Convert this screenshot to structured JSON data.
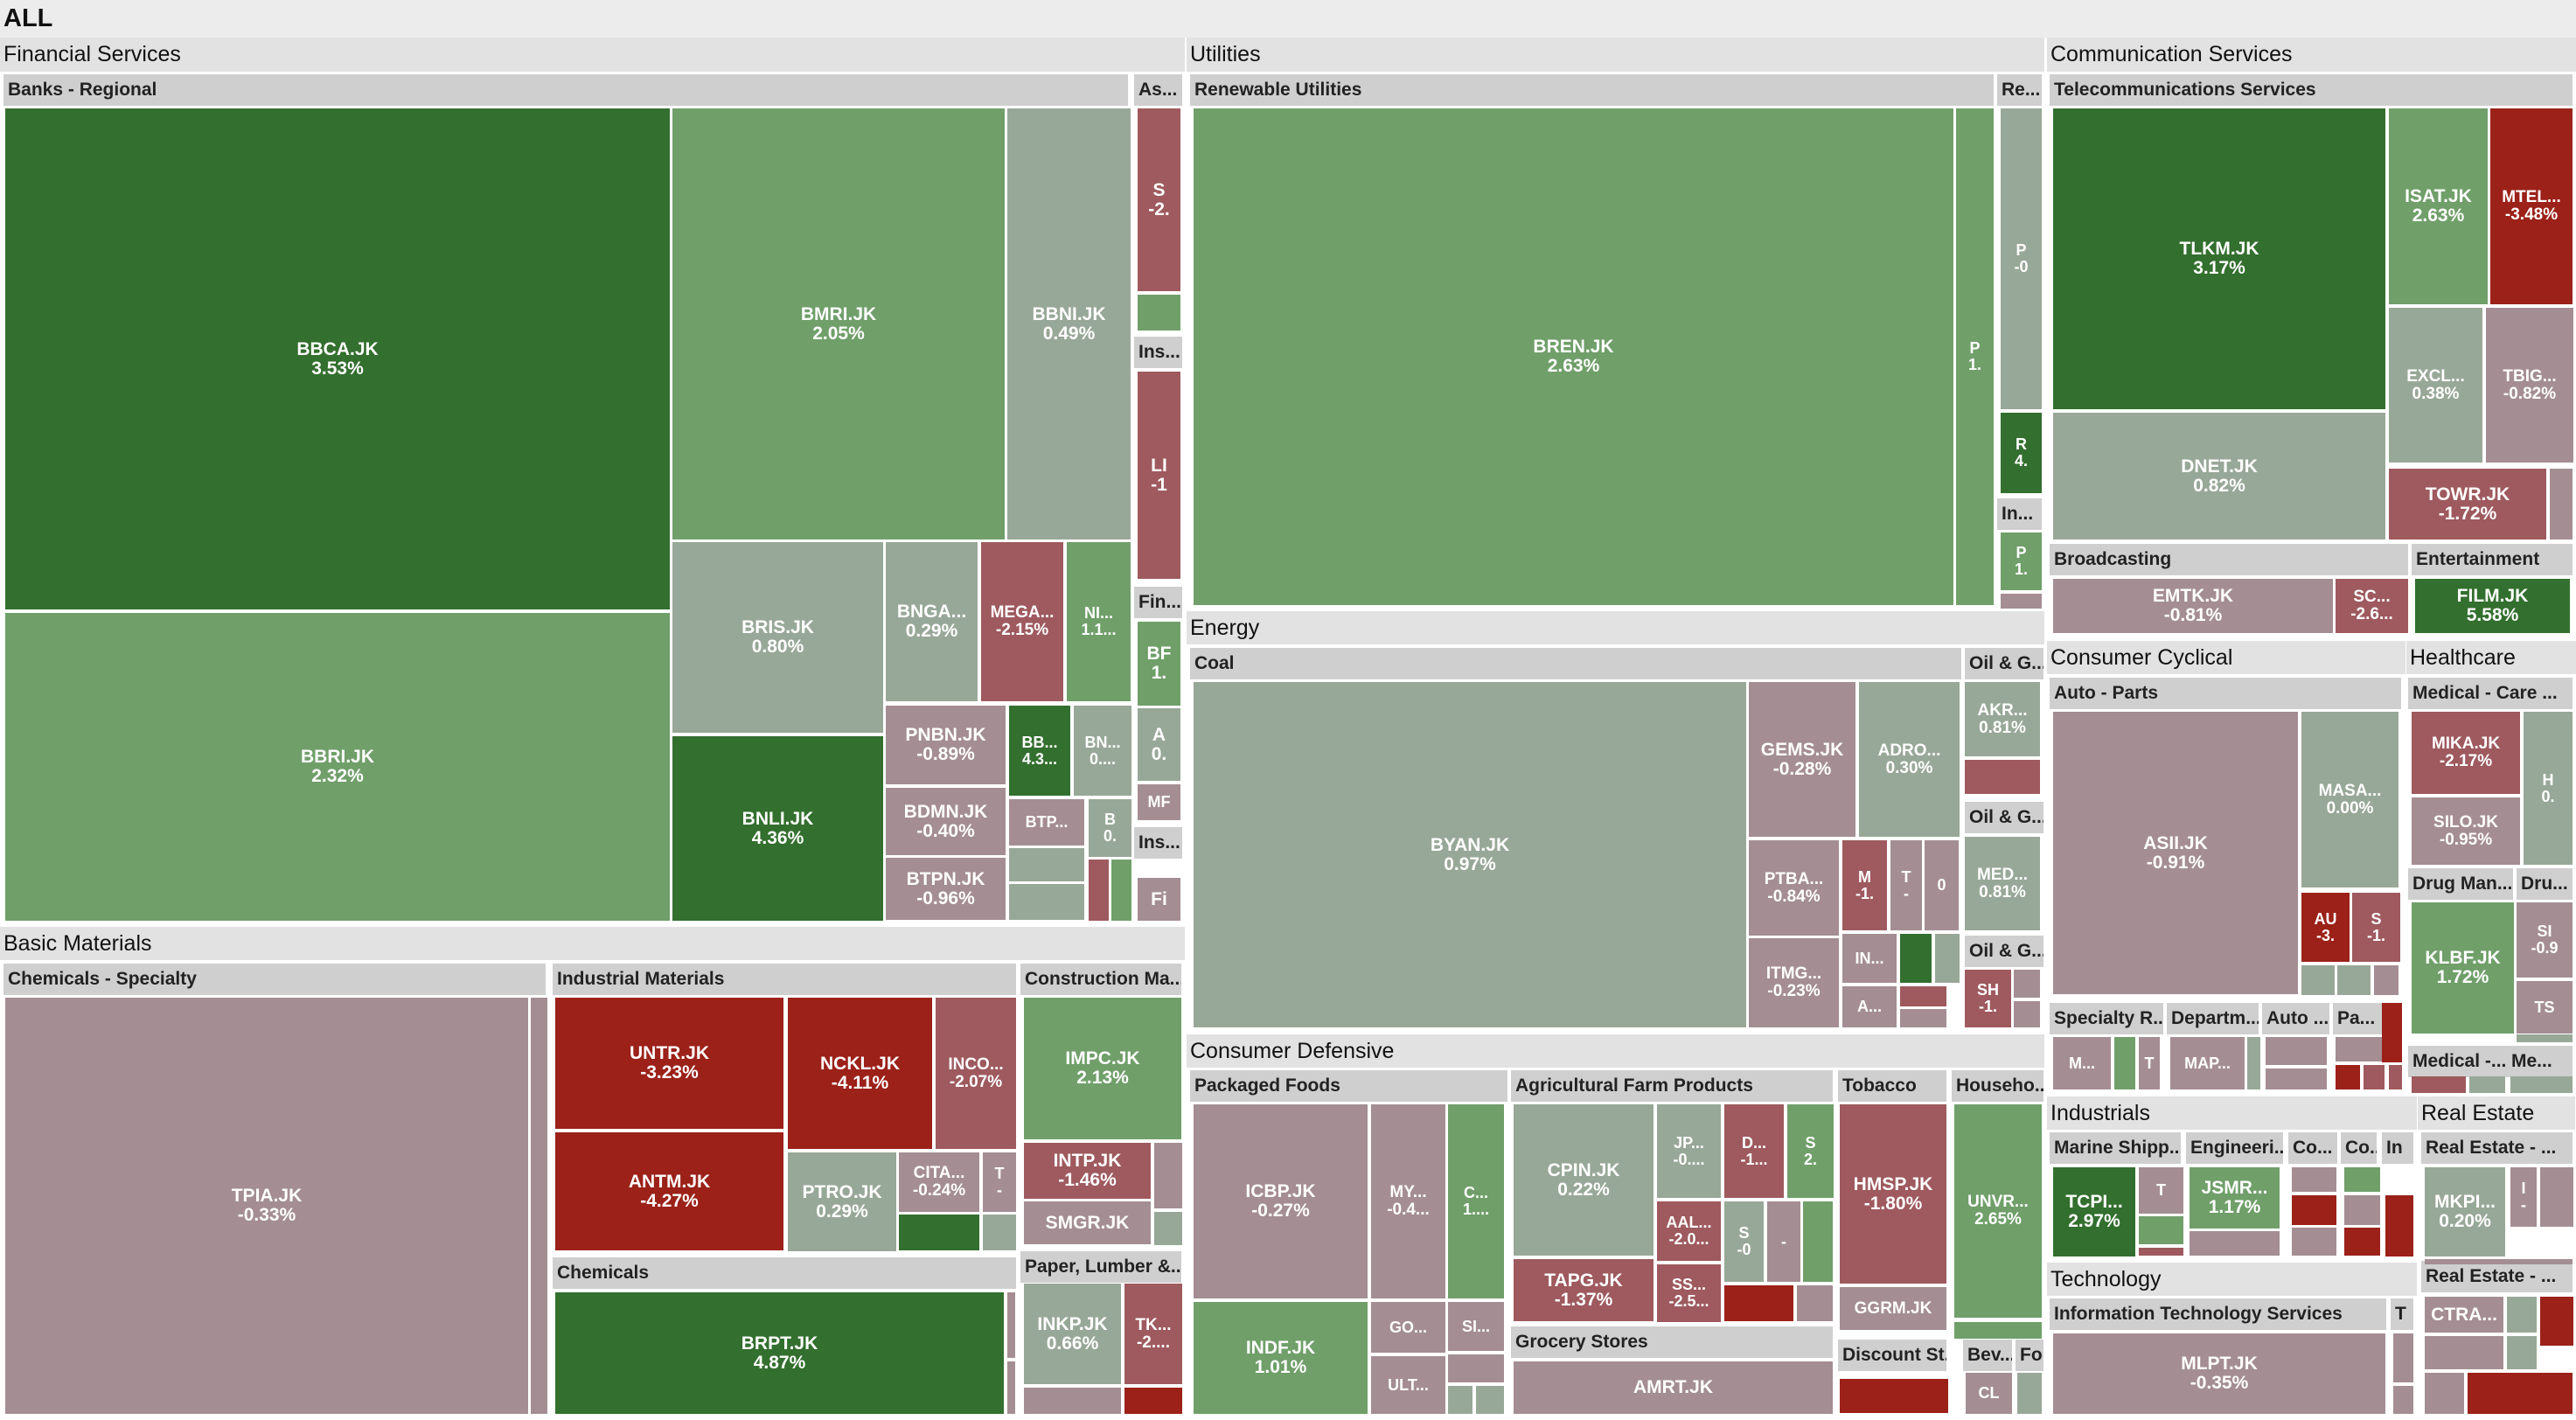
{
  "title": "ALL",
  "colors": {
    "strong_up": "#336f2e",
    "up": "#709f6a",
    "flat_up": "#98a898",
    "flat_down": "#a48e93",
    "down": "#9e5a5e",
    "strong_down": "#9b2119",
    "sector_header": "#e2e2e2",
    "industry_header": "#cfcfcf",
    "gap": "#ffffff"
  },
  "chart_data": {
    "type": "treemap",
    "title": "ALL",
    "color_metric": "daily % change",
    "sectors": [
      {
        "name": "Financial Services",
        "industries": [
          {
            "name": "Banks - Regional",
            "stocks": [
              {
                "ticker": "BBCA.JK",
                "change": "3.53%"
              },
              {
                "ticker": "BBRI.JK",
                "change": "2.32%"
              },
              {
                "ticker": "BMRI.JK",
                "change": "2.05%"
              },
              {
                "ticker": "BBNI.JK",
                "change": "0.49%"
              },
              {
                "ticker": "BRIS.JK",
                "change": "0.80%"
              },
              {
                "ticker": "BNGA...",
                "change": "0.29%"
              },
              {
                "ticker": "MEGA...",
                "change": "-2.15%"
              },
              {
                "ticker": "NI...",
                "change": "1.1..."
              },
              {
                "ticker": "BNLI.JK",
                "change": "4.36%"
              },
              {
                "ticker": "PNBN.JK",
                "change": "-0.89%"
              },
              {
                "ticker": "BB...",
                "change": "4.3..."
              },
              {
                "ticker": "BN...",
                "change": "0...."
              },
              {
                "ticker": "BDMN.JK",
                "change": "-0.40%"
              },
              {
                "ticker": "BTP...",
                "change": ""
              },
              {
                "ticker": "B",
                "change": "0."
              },
              {
                "ticker": "BTPN.JK",
                "change": "-0.96%"
              }
            ]
          },
          {
            "name": "As...",
            "stocks": [
              {
                "ticker": "S",
                "change": "-2."
              }
            ]
          },
          {
            "name": "Ins...",
            "stocks": [
              {
                "ticker": "LI",
                "change": "-1"
              }
            ]
          },
          {
            "name": "Fin...",
            "stocks": [
              {
                "ticker": "BF",
                "change": "1."
              },
              {
                "ticker": "A",
                "change": "0."
              },
              {
                "ticker": "MF",
                "change": ""
              }
            ]
          },
          {
            "name": "Ins...",
            "stocks": [
              {
                "ticker": "Fi",
                "change": ""
              }
            ]
          }
        ]
      },
      {
        "name": "Basic Materials",
        "industries": [
          {
            "name": "Chemicals - Specialty",
            "stocks": [
              {
                "ticker": "TPIA.JK",
                "change": "-0.33%"
              }
            ]
          },
          {
            "name": "Industrial Materials",
            "stocks": [
              {
                "ticker": "UNTR.JK",
                "change": "-3.23%"
              },
              {
                "ticker": "NCKL.JK",
                "change": "-4.11%"
              },
              {
                "ticker": "INCO...",
                "change": "-2.07%"
              },
              {
                "ticker": "ANTM.JK",
                "change": "-4.27%"
              },
              {
                "ticker": "PTRO.JK",
                "change": "0.29%"
              },
              {
                "ticker": "CITA...",
                "change": "-0.24%"
              },
              {
                "ticker": "T",
                "change": "-"
              }
            ]
          },
          {
            "name": "Chemicals",
            "stocks": [
              {
                "ticker": "BRPT.JK",
                "change": "4.87%"
              }
            ]
          },
          {
            "name": "Construction Ma...",
            "stocks": [
              {
                "ticker": "IMPC.JK",
                "change": "2.13%"
              },
              {
                "ticker": "INTP.JK",
                "change": "-1.46%"
              },
              {
                "ticker": "SMGR.JK",
                "change": ""
              }
            ]
          },
          {
            "name": "Paper, Lumber &...",
            "stocks": [
              {
                "ticker": "INKP.JK",
                "change": "0.66%"
              },
              {
                "ticker": "TK...",
                "change": "-2...."
              }
            ]
          }
        ]
      },
      {
        "name": "Utilities",
        "industries": [
          {
            "name": "Renewable Utilities",
            "stocks": [
              {
                "ticker": "BREN.JK",
                "change": "2.63%"
              },
              {
                "ticker": "P",
                "change": "1."
              }
            ]
          },
          {
            "name": "Re...",
            "stocks": [
              {
                "ticker": "P",
                "change": "-0"
              },
              {
                "ticker": "R",
                "change": "4."
              }
            ]
          },
          {
            "name": "In...",
            "stocks": [
              {
                "ticker": "P",
                "change": "1."
              }
            ]
          }
        ]
      },
      {
        "name": "Energy",
        "industries": [
          {
            "name": "Coal",
            "stocks": [
              {
                "ticker": "BYAN.JK",
                "change": "0.97%"
              },
              {
                "ticker": "GEMS.JK",
                "change": "-0.28%"
              },
              {
                "ticker": "ADRO...",
                "change": "0.30%"
              },
              {
                "ticker": "PTBA...",
                "change": "-0.84%"
              },
              {
                "ticker": "M",
                "change": "-1."
              },
              {
                "ticker": "T",
                "change": "-"
              },
              {
                "ticker": "0",
                "change": ""
              },
              {
                "ticker": "ITMG...",
                "change": "-0.23%"
              },
              {
                "ticker": "IN...",
                "change": ""
              },
              {
                "ticker": "A...",
                "change": ""
              }
            ]
          },
          {
            "name": "Oil & G...",
            "stocks": [
              {
                "ticker": "AKR...",
                "change": "0.81%"
              }
            ]
          },
          {
            "name": "Oil & G...",
            "stocks": [
              {
                "ticker": "MED...",
                "change": "0.81%"
              }
            ]
          },
          {
            "name": "Oil & G...",
            "stocks": [
              {
                "ticker": "SH",
                "change": "-1."
              }
            ]
          }
        ]
      },
      {
        "name": "Consumer Defensive",
        "industries": [
          {
            "name": "Packaged Foods",
            "stocks": [
              {
                "ticker": "ICBP.JK",
                "change": "-0.27%"
              },
              {
                "ticker": "MY...",
                "change": "-0.4..."
              },
              {
                "ticker": "C...",
                "change": "1...."
              },
              {
                "ticker": "INDF.JK",
                "change": "1.01%"
              },
              {
                "ticker": "GO...",
                "change": ""
              },
              {
                "ticker": "SI...",
                "change": ""
              },
              {
                "ticker": "ULT...",
                "change": ""
              }
            ]
          },
          {
            "name": "Agricultural Farm Products",
            "stocks": [
              {
                "ticker": "CPIN.JK",
                "change": "0.22%"
              },
              {
                "ticker": "JP...",
                "change": "-0...."
              },
              {
                "ticker": "D...",
                "change": "-1..."
              },
              {
                "ticker": "S",
                "change": "2."
              },
              {
                "ticker": "AAL...",
                "change": "-2.0..."
              },
              {
                "ticker": "S",
                "change": "-0"
              },
              {
                "ticker": "-",
                "change": ""
              },
              {
                "ticker": "TAPG.JK",
                "change": "-1.37%"
              },
              {
                "ticker": "SS...",
                "change": "-2.5..."
              }
            ]
          },
          {
            "name": "Grocery Stores",
            "stocks": [
              {
                "ticker": "AMRT.JK",
                "change": ""
              }
            ]
          },
          {
            "name": "Tobacco",
            "stocks": [
              {
                "ticker": "HMSP.JK",
                "change": "-1.80%"
              },
              {
                "ticker": "GGRM.JK",
                "change": ""
              }
            ]
          },
          {
            "name": "Discount St...",
            "stocks": []
          },
          {
            "name": "Househo...",
            "stocks": [
              {
                "ticker": "UNVR...",
                "change": "2.65%"
              }
            ]
          },
          {
            "name": "Bev...",
            "stocks": [
              {
                "ticker": "CL",
                "change": ""
              }
            ]
          },
          {
            "name": "Fo",
            "stocks": []
          }
        ]
      },
      {
        "name": "Communication Services",
        "industries": [
          {
            "name": "Telecommunications Services",
            "stocks": [
              {
                "ticker": "TLKM.JK",
                "change": "3.17%"
              },
              {
                "ticker": "ISAT.JK",
                "change": "2.63%"
              },
              {
                "ticker": "MTEL...",
                "change": "-3.48%"
              },
              {
                "ticker": "DNET.JK",
                "change": "0.82%"
              },
              {
                "ticker": "EXCL...",
                "change": "0.38%"
              },
              {
                "ticker": "TBIG...",
                "change": "-0.82%"
              },
              {
                "ticker": "TOWR.JK",
                "change": "-1.72%"
              }
            ]
          },
          {
            "name": "Broadcasting",
            "stocks": [
              {
                "ticker": "EMTK.JK",
                "change": "-0.81%"
              },
              {
                "ticker": "SC...",
                "change": "-2.6..."
              }
            ]
          },
          {
            "name": "Entertainment",
            "stocks": [
              {
                "ticker": "FILM.JK",
                "change": "5.58%"
              }
            ]
          }
        ]
      },
      {
        "name": "Consumer Cyclical",
        "industries": [
          {
            "name": "Auto - Parts",
            "stocks": [
              {
                "ticker": "ASII.JK",
                "change": "-0.91%"
              },
              {
                "ticker": "MASA...",
                "change": "0.00%"
              },
              {
                "ticker": "AU",
                "change": "-3."
              },
              {
                "ticker": "S",
                "change": "-1."
              }
            ]
          },
          {
            "name": "Specialty R...",
            "stocks": [
              {
                "ticker": "M...",
                "change": ""
              },
              {
                "ticker": "T",
                "change": ""
              }
            ]
          },
          {
            "name": "Departm...",
            "stocks": [
              {
                "ticker": "MAP...",
                "change": ""
              }
            ]
          },
          {
            "name": "Auto ...",
            "stocks": []
          },
          {
            "name": "Pa...",
            "stocks": []
          }
        ]
      },
      {
        "name": "Healthcare",
        "industries": [
          {
            "name": "Medical - Care ...",
            "stocks": [
              {
                "ticker": "MIKA.JK",
                "change": "-2.17%"
              },
              {
                "ticker": "H",
                "change": "0."
              },
              {
                "ticker": "SILO.JK",
                "change": "-0.95%"
              }
            ]
          },
          {
            "name": "Drug Man...",
            "stocks": [
              {
                "ticker": "KLBF.JK",
                "change": "1.72%"
              }
            ]
          },
          {
            "name": "Dru...",
            "stocks": [
              {
                "ticker": "SI",
                "change": "-0.9"
              },
              {
                "ticker": "TS",
                "change": ""
              }
            ]
          },
          {
            "name": "Medical -...",
            "stocks": []
          },
          {
            "name": "Me...",
            "stocks": []
          }
        ]
      },
      {
        "name": "Industrials",
        "industries": [
          {
            "name": "Marine Shipp...",
            "stocks": [
              {
                "ticker": "TCPI...",
                "change": "2.97%"
              },
              {
                "ticker": "T",
                "change": ""
              }
            ]
          },
          {
            "name": "Engineeri...",
            "stocks": [
              {
                "ticker": "JSMR...",
                "change": "1.17%"
              }
            ]
          },
          {
            "name": "Co...",
            "stocks": []
          },
          {
            "name": "Co...",
            "stocks": []
          },
          {
            "name": "In",
            "stocks": []
          }
        ]
      },
      {
        "name": "Real Estate",
        "industries": [
          {
            "name": "Real Estate - ...",
            "stocks": [
              {
                "ticker": "MKPI...",
                "change": "0.20%"
              },
              {
                "ticker": "I",
                "change": "-"
              }
            ]
          },
          {
            "name": "Real Estate - ...",
            "stocks": [
              {
                "ticker": "CTRA...",
                "change": ""
              }
            ]
          }
        ]
      },
      {
        "name": "Technology",
        "industries": [
          {
            "name": "Information Technology Services",
            "stocks": [
              {
                "ticker": "MLPT.JK",
                "change": "-0.35%"
              }
            ]
          },
          {
            "name": "T",
            "stocks": []
          }
        ]
      }
    ]
  }
}
